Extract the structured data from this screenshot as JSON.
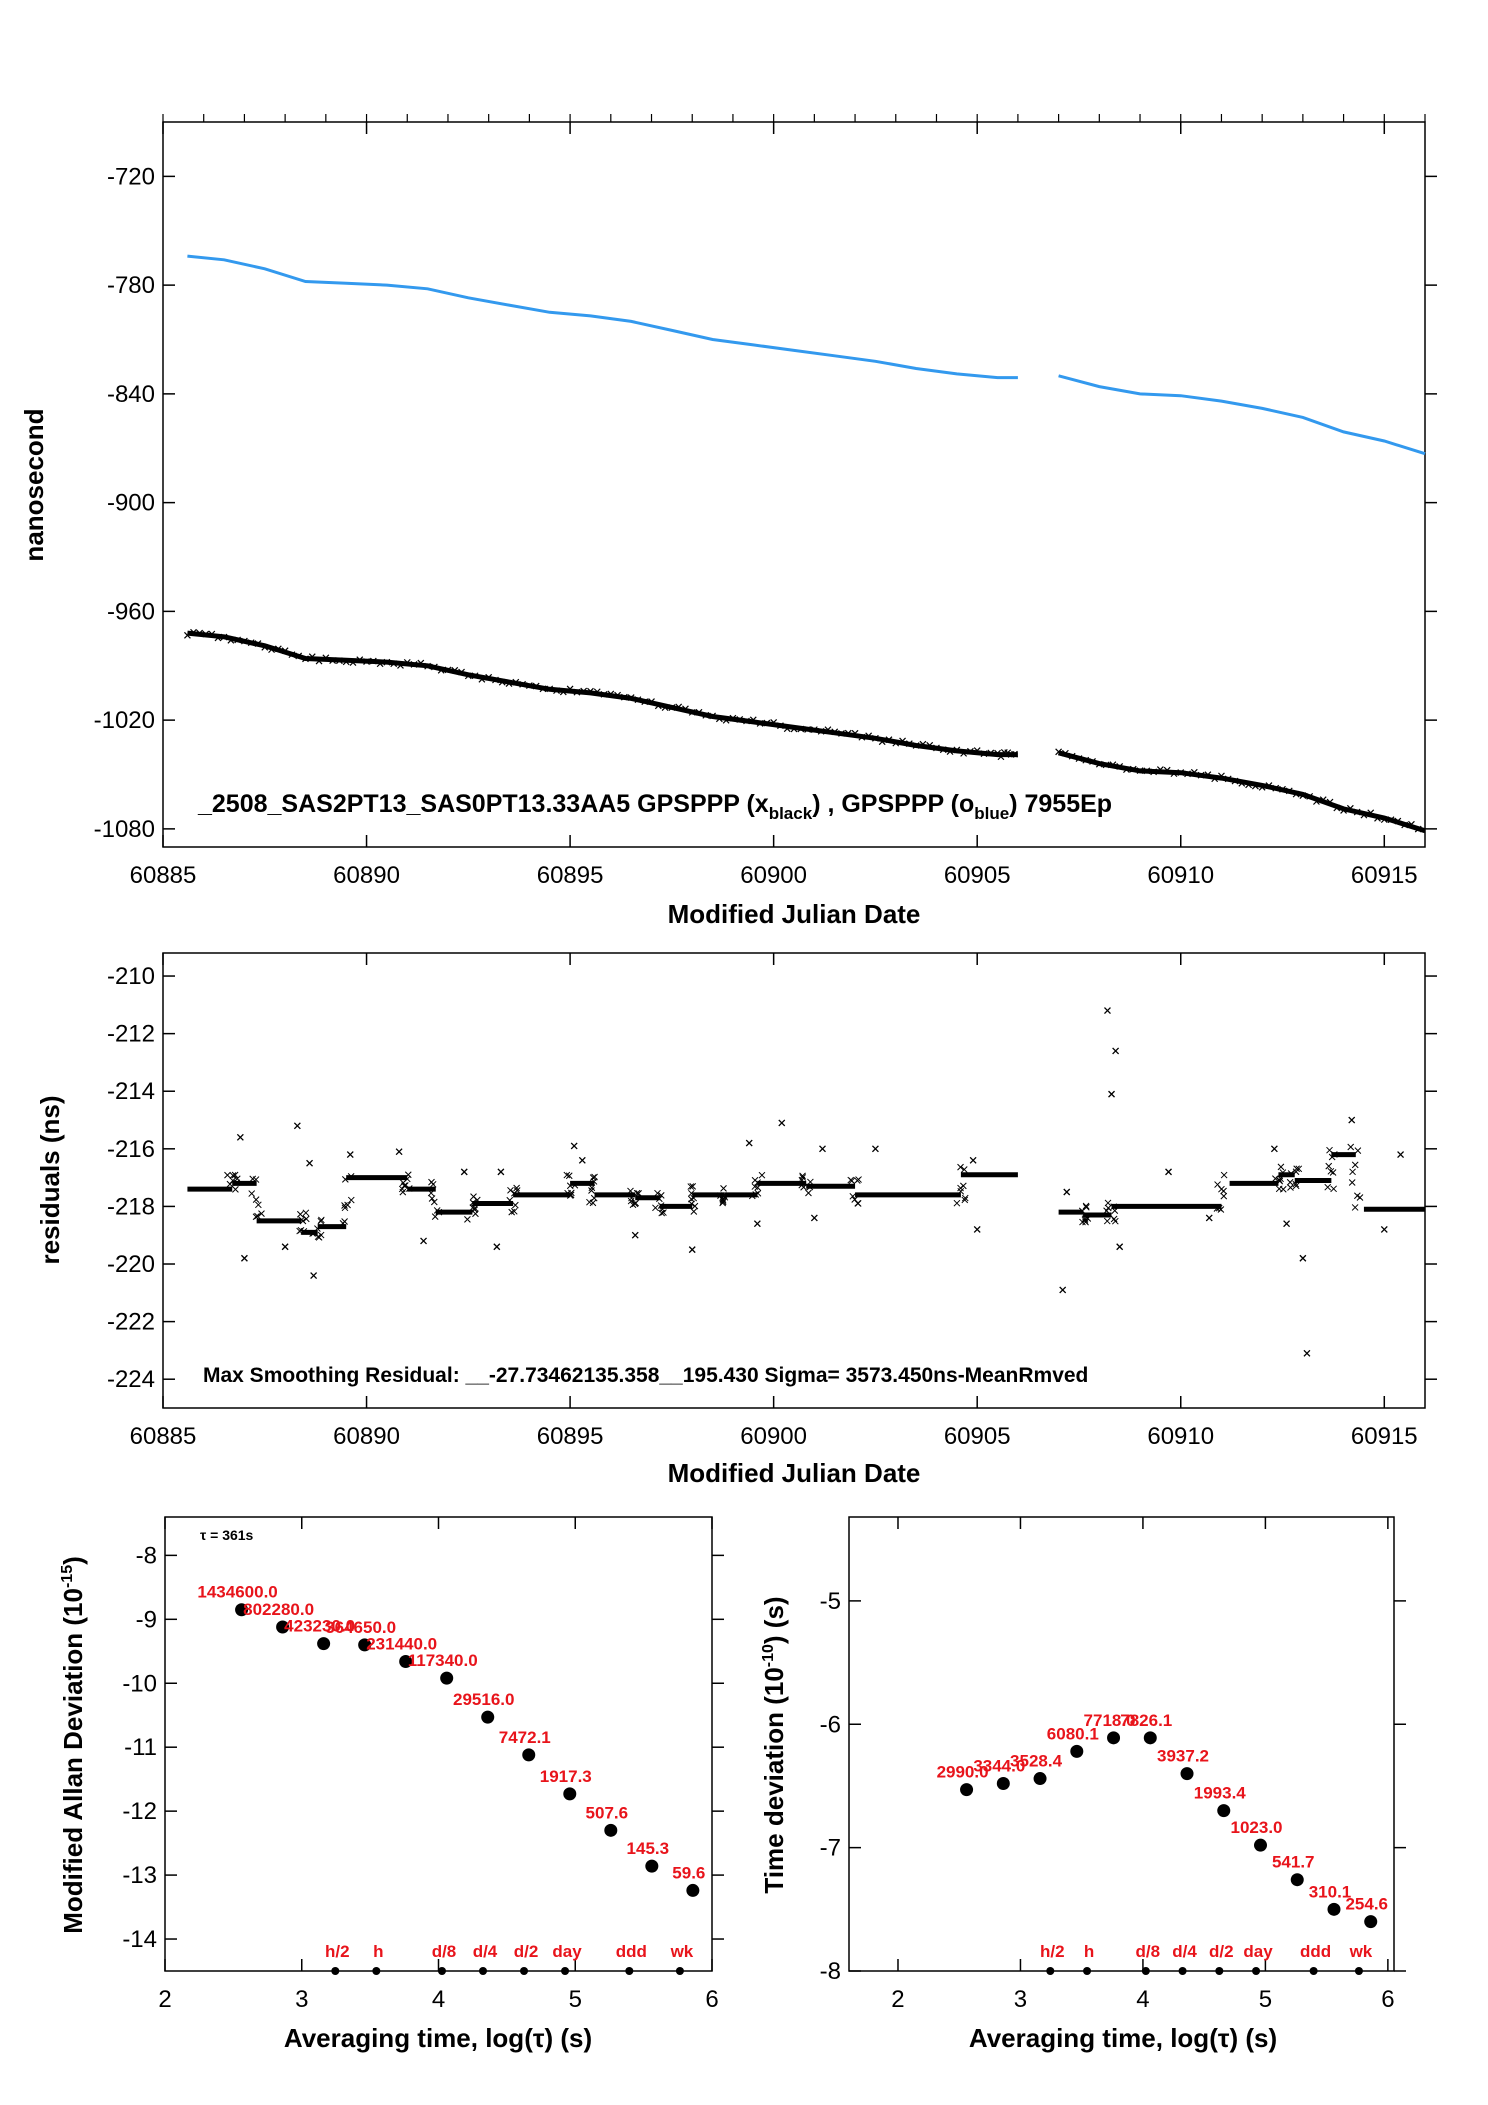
{
  "chart_data": [
    {
      "type": "scatter",
      "xlabel": "Modified Julian Date",
      "ylabel": "nanosecond",
      "xlim": [
        60885,
        60916
      ],
      "ylim": [
        -1090,
        -690
      ],
      "xticks": [
        "60885",
        "60890",
        "60895",
        "60900",
        "60905",
        "60910",
        "60915"
      ],
      "yticks": [
        "-720",
        "-780",
        "-840",
        "-900",
        "-960",
        "-1020",
        "-1080"
      ],
      "legend_text": {
        "main": "_2508_SAS2PT13_SAS0PT13.33AA5     GPSPPP (x",
        "sub1": "black",
        "mid": ") ,  GPSPPP (o",
        "sub2": "blue",
        "end": ")  7955Ep"
      },
      "series": [
        {
          "name": "GPSPPP (o blue)",
          "color": "#3399ee",
          "points": [
            [
              60885.6,
              -764
            ],
            [
              60886.5,
              -766
            ],
            [
              60887.5,
              -771
            ],
            [
              60888.5,
              -778
            ],
            [
              60889.5,
              -779
            ],
            [
              60890.5,
              -780
            ],
            [
              60891.5,
              -782
            ],
            [
              60892.5,
              -787
            ],
            [
              60893.5,
              -791
            ],
            [
              60894.5,
              -795
            ],
            [
              60895.5,
              -797
            ],
            [
              60896.5,
              -800
            ],
            [
              60897.5,
              -805
            ],
            [
              60898.5,
              -810
            ],
            [
              60899.5,
              -813
            ],
            [
              60900.5,
              -816
            ],
            [
              60901.5,
              -819
            ],
            [
              60902.5,
              -822
            ],
            [
              60903.5,
              -826
            ],
            [
              60904.5,
              -829
            ],
            [
              60905.5,
              -831
            ],
            [
              60906.0,
              -831
            ],
            [
              60907.0,
              -830
            ],
            [
              60908.0,
              -836
            ],
            [
              60909.0,
              -840
            ],
            [
              60910.0,
              -841
            ],
            [
              60911.0,
              -844
            ],
            [
              60912.0,
              -848
            ],
            [
              60913.0,
              -853
            ],
            [
              60914.0,
              -861
            ],
            [
              60915.0,
              -866
            ],
            [
              60916.0,
              -873
            ]
          ]
        },
        {
          "name": "GPSPPP (x black)",
          "color": "#000000",
          "points": [
            [
              60885.6,
              -972
            ],
            [
              60886.5,
              -974
            ],
            [
              60887.5,
              -979
            ],
            [
              60888.5,
              -986
            ],
            [
              60889.5,
              -987
            ],
            [
              60890.5,
              -988
            ],
            [
              60891.5,
              -990
            ],
            [
              60892.5,
              -995
            ],
            [
              60893.5,
              -999
            ],
            [
              60894.5,
              -1003
            ],
            [
              60895.5,
              -1005
            ],
            [
              60896.5,
              -1008
            ],
            [
              60897.5,
              -1013
            ],
            [
              60898.5,
              -1018
            ],
            [
              60899.5,
              -1021
            ],
            [
              60900.5,
              -1024
            ],
            [
              60901.5,
              -1027
            ],
            [
              60902.5,
              -1030
            ],
            [
              60903.5,
              -1034
            ],
            [
              60904.5,
              -1037
            ],
            [
              60905.5,
              -1039
            ],
            [
              60906.0,
              -1039
            ],
            [
              60907.0,
              -1038
            ],
            [
              60908.0,
              -1044
            ],
            [
              60909.0,
              -1048
            ],
            [
              60910.0,
              -1049
            ],
            [
              60911.0,
              -1052
            ],
            [
              60912.0,
              -1056
            ],
            [
              60913.0,
              -1061
            ],
            [
              60914.0,
              -1069
            ],
            [
              60915.0,
              -1074
            ],
            [
              60916.0,
              -1081
            ]
          ]
        }
      ]
    },
    {
      "type": "scatter",
      "xlabel": "Modified Julian Date",
      "ylabel": "residuals (ns)",
      "xlim": [
        60885,
        60916
      ],
      "ylim": [
        -225,
        -209.2
      ],
      "xticks": [
        "60885",
        "60890",
        "60895",
        "60900",
        "60905",
        "60910",
        "60915"
      ],
      "yticks": [
        "-210",
        "-212",
        "-214",
        "-216",
        "-218",
        "-220",
        "-222",
        "-224"
      ],
      "note": "Max Smoothing Residual: __-27.73462135.358__195.430  Sigma= 3573.450ns-MeanRmved",
      "segments": [
        {
          "x0": 60885.6,
          "x1": 60886.7,
          "y": -217.4
        },
        {
          "x0": 60886.7,
          "x1": 60887.3,
          "y": -217.2
        },
        {
          "x0": 60887.3,
          "x1": 60888.4,
          "y": -218.5
        },
        {
          "x0": 60888.4,
          "x1": 60888.8,
          "y": -218.9
        },
        {
          "x0": 60888.8,
          "x1": 60889.5,
          "y": -218.7
        },
        {
          "x0": 60889.5,
          "x1": 60891.0,
          "y": -217.0
        },
        {
          "x0": 60891.0,
          "x1": 60891.7,
          "y": -217.4
        },
        {
          "x0": 60891.7,
          "x1": 60892.6,
          "y": -218.2
        },
        {
          "x0": 60892.6,
          "x1": 60893.6,
          "y": -217.9
        },
        {
          "x0": 60893.6,
          "x1": 60895.0,
          "y": -217.6
        },
        {
          "x0": 60895.0,
          "x1": 60895.6,
          "y": -217.2
        },
        {
          "x0": 60895.6,
          "x1": 60896.6,
          "y": -217.6
        },
        {
          "x0": 60896.6,
          "x1": 60897.2,
          "y": -217.7
        },
        {
          "x0": 60897.2,
          "x1": 60898.0,
          "y": -218.0
        },
        {
          "x0": 60898.0,
          "x1": 60898.8,
          "y": -217.6
        },
        {
          "x0": 60898.8,
          "x1": 60899.6,
          "y": -217.6
        },
        {
          "x0": 60899.6,
          "x1": 60900.8,
          "y": -217.2
        },
        {
          "x0": 60900.8,
          "x1": 60902.0,
          "y": -217.3
        },
        {
          "x0": 60902.0,
          "x1": 60904.6,
          "y": -217.6
        },
        {
          "x0": 60904.6,
          "x1": 60906.0,
          "y": -216.9
        },
        {
          "x0": 60907.0,
          "x1": 60907.6,
          "y": -218.2
        },
        {
          "x0": 60907.6,
          "x1": 60908.3,
          "y": -218.3
        },
        {
          "x0": 60908.3,
          "x1": 60911.0,
          "y": -218.0
        },
        {
          "x0": 60911.2,
          "x1": 60912.4,
          "y": -217.2
        },
        {
          "x0": 60912.4,
          "x1": 60912.8,
          "y": -216.9
        },
        {
          "x0": 60912.8,
          "x1": 60913.7,
          "y": -217.1
        },
        {
          "x0": 60913.7,
          "x1": 60914.3,
          "y": -216.2
        },
        {
          "x0": 60914.5,
          "x1": 60916.0,
          "y": -218.1
        }
      ],
      "outliers": [
        [
          60886.9,
          -215.6
        ],
        [
          60887.0,
          -219.8
        ],
        [
          60888.0,
          -219.4
        ],
        [
          60888.3,
          -215.2
        ],
        [
          60888.6,
          -216.5
        ],
        [
          60888.7,
          -220.4
        ],
        [
          60889.6,
          -216.2
        ],
        [
          60890.8,
          -216.1
        ],
        [
          60891.4,
          -219.2
        ],
        [
          60892.4,
          -216.8
        ],
        [
          60893.2,
          -219.4
        ],
        [
          60893.3,
          -216.8
        ],
        [
          60895.1,
          -215.9
        ],
        [
          60895.3,
          -216.4
        ],
        [
          60896.6,
          -219.0
        ],
        [
          60898.0,
          -219.5
        ],
        [
          60899.4,
          -215.8
        ],
        [
          60899.6,
          -218.6
        ],
        [
          60900.2,
          -215.1
        ],
        [
          60901.0,
          -218.4
        ],
        [
          60901.2,
          -216.0
        ],
        [
          60902.5,
          -216.0
        ],
        [
          60904.9,
          -216.4
        ],
        [
          60905.0,
          -218.8
        ],
        [
          60907.1,
          -220.9
        ],
        [
          60907.2,
          -217.5
        ],
        [
          60908.2,
          -211.2
        ],
        [
          60908.3,
          -214.1
        ],
        [
          60908.4,
          -212.6
        ],
        [
          60908.5,
          -219.4
        ],
        [
          60909.7,
          -216.8
        ],
        [
          60910.7,
          -218.4
        ],
        [
          60912.3,
          -216.0
        ],
        [
          60912.6,
          -218.6
        ],
        [
          60913.0,
          -219.8
        ],
        [
          60913.1,
          -223.1
        ],
        [
          60914.2,
          -215.0
        ],
        [
          60915.0,
          -218.8
        ],
        [
          60915.4,
          -216.2
        ]
      ]
    },
    {
      "type": "scatter",
      "xlabel": "Averaging time, log(τ) (s)",
      "ylabel_main": "Modified Allan Deviation (10",
      "ylabel_sup": "-15",
      "ylabel_end": ")",
      "xlim": [
        2,
        6
      ],
      "ylim": [
        -14.5,
        -7.4
      ],
      "xticks": [
        "2",
        "3",
        "4",
        "5",
        "6"
      ],
      "yticks": [
        "-8",
        "-9",
        "-10",
        "-11",
        "-12",
        "-13",
        "-14"
      ],
      "tau_note": "τ = 361s",
      "points": [
        {
          "x": 2.56,
          "y": -8.85,
          "label": "1434600.0"
        },
        {
          "x": 2.86,
          "y": -9.12,
          "label": "802280.0"
        },
        {
          "x": 3.16,
          "y": -9.38,
          "label": "423230.0"
        },
        {
          "x": 3.46,
          "y": -9.4,
          "label": "364650.0"
        },
        {
          "x": 3.76,
          "y": -9.66,
          "label": "231440.0"
        },
        {
          "x": 4.06,
          "y": -9.92,
          "label": "117340.0"
        },
        {
          "x": 4.36,
          "y": -10.53,
          "label": "29516.0"
        },
        {
          "x": 4.66,
          "y": -11.12,
          "label": "7472.1"
        },
        {
          "x": 4.96,
          "y": -11.73,
          "label": "1917.3"
        },
        {
          "x": 5.26,
          "y": -12.3,
          "label": "507.6"
        },
        {
          "x": 5.56,
          "y": -12.86,
          "label": "145.3"
        },
        {
          "x": 5.86,
          "y": -13.24,
          "label": "59.6"
        }
      ],
      "markers": [
        {
          "label": "h/2",
          "x": 3.26
        },
        {
          "label": "h",
          "x": 3.56
        },
        {
          "label": "d/8",
          "x": 4.04
        },
        {
          "label": "d/4",
          "x": 4.34
        },
        {
          "label": "d/2",
          "x": 4.64
        },
        {
          "label": "day",
          "x": 4.94
        },
        {
          "label": "ddd",
          "x": 5.41
        },
        {
          "label": "wk",
          "x": 5.78
        }
      ]
    },
    {
      "type": "scatter",
      "xlabel": "Averaging time, log(τ) (s)",
      "ylabel_main": "Time deviation (10",
      "ylabel_sup": "-10",
      "ylabel_end": ") (s)",
      "xlim": [
        1.6,
        6.05
      ],
      "ylim": [
        -8,
        -4.32
      ],
      "xticks": [
        "2",
        "3",
        "4",
        "5",
        "6"
      ],
      "yticks": [
        "-5",
        "-6",
        "-7",
        "-8"
      ],
      "points": [
        {
          "x": 2.56,
          "y": -6.53,
          "label": "2990.0"
        },
        {
          "x": 2.86,
          "y": -6.48,
          "label": "3344.0"
        },
        {
          "x": 3.16,
          "y": -6.44,
          "label": "3528.4"
        },
        {
          "x": 3.46,
          "y": -6.22,
          "label": "6080.1"
        },
        {
          "x": 3.76,
          "y": -6.11,
          "label": "7718.0"
        },
        {
          "x": 4.06,
          "y": -6.11,
          "label": "7826.1"
        },
        {
          "x": 4.36,
          "y": -6.4,
          "label": "3937.2"
        },
        {
          "x": 4.66,
          "y": -6.7,
          "label": "1993.4"
        },
        {
          "x": 4.96,
          "y": -6.98,
          "label": "1023.0"
        },
        {
          "x": 5.26,
          "y": -7.26,
          "label": "541.7"
        },
        {
          "x": 5.56,
          "y": -7.5,
          "label": "310.1"
        },
        {
          "x": 5.86,
          "y": -7.6,
          "label": "254.6"
        }
      ],
      "markers": [
        {
          "label": "h/2",
          "x": 3.26
        },
        {
          "label": "h",
          "x": 3.56
        },
        {
          "label": "d/8",
          "x": 4.04
        },
        {
          "label": "d/4",
          "x": 4.34
        },
        {
          "label": "d/2",
          "x": 4.64
        },
        {
          "label": "day",
          "x": 4.94
        },
        {
          "label": "ddd",
          "x": 5.41
        },
        {
          "label": "wk",
          "x": 5.78
        }
      ]
    }
  ]
}
